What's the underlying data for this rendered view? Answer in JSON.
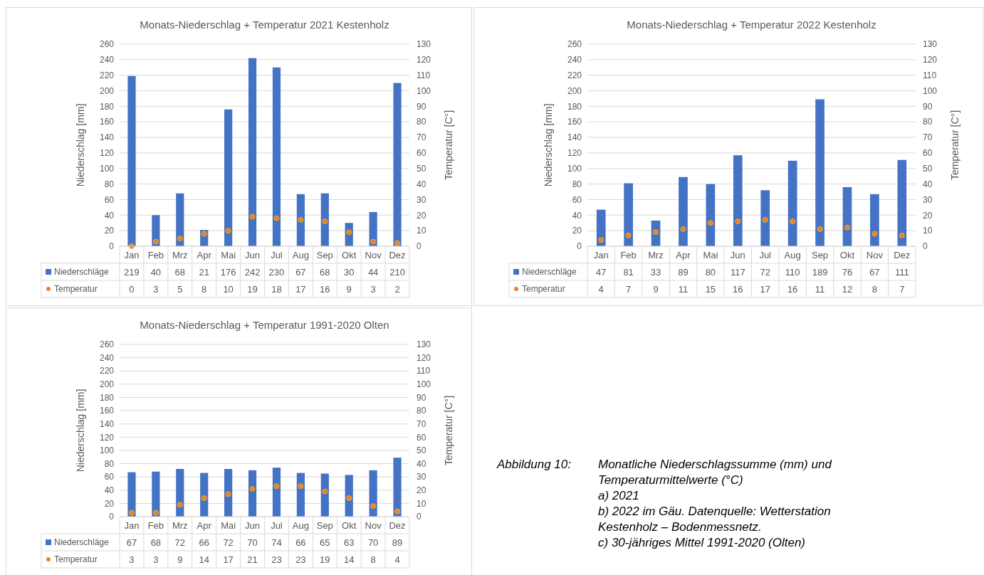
{
  "chart_data": [
    {
      "type": "bar",
      "title": "Monats-Niederschlag + Temperatur 2021 Kestenholz",
      "ylabel": "Niederschlag [mm]",
      "y2label": "Temperatur [C°]",
      "categories": [
        "Jan",
        "Feb",
        "Mrz",
        "Apr",
        "Mai",
        "Jun",
        "Jul",
        "Aug",
        "Sep",
        "Okt",
        "Nov",
        "Dez"
      ],
      "ylim": [
        0,
        260
      ],
      "yticks": [
        0,
        20,
        40,
        60,
        80,
        100,
        120,
        140,
        160,
        180,
        200,
        220,
        240,
        260
      ],
      "y2lim": [
        0,
        130
      ],
      "y2ticks": [
        0,
        10,
        20,
        30,
        40,
        50,
        60,
        70,
        80,
        90,
        100,
        110,
        120,
        130
      ],
      "grid": "y",
      "legend": "bottom",
      "data_labels": true,
      "series": [
        {
          "name": "Niederschläge",
          "type": "bar",
          "color": "#4472c4",
          "values": [
            219,
            40,
            68,
            21,
            176,
            242,
            230,
            67,
            68,
            30,
            44,
            210
          ]
        },
        {
          "name": "Temperatur",
          "type": "scatter",
          "axis": "y2",
          "marker": "circle",
          "color": "#ed7d31",
          "values": [
            0,
            3,
            5,
            8,
            10,
            19,
            18,
            17,
            16,
            9,
            3,
            2
          ]
        }
      ]
    },
    {
      "type": "bar",
      "title": "Monats-Niederschlag + Temperatur 2022 Kestenholz",
      "ylabel": "Niederschlag [mm]",
      "y2label": "Temperatur [C°]",
      "categories": [
        "Jan",
        "Feb",
        "Mrz",
        "Apr",
        "Mai",
        "Jun",
        "Jul",
        "Aug",
        "Sep",
        "Okt",
        "Nov",
        "Dez"
      ],
      "ylim": [
        0,
        260
      ],
      "yticks": [
        0,
        20,
        40,
        60,
        80,
        100,
        120,
        140,
        160,
        180,
        200,
        220,
        240,
        260
      ],
      "y2lim": [
        0,
        130
      ],
      "y2ticks": [
        0,
        10,
        20,
        30,
        40,
        50,
        60,
        70,
        80,
        90,
        100,
        110,
        120,
        130
      ],
      "grid": "y",
      "legend": "bottom",
      "data_labels": true,
      "series": [
        {
          "name": "Niederschläge",
          "type": "bar",
          "color": "#4472c4",
          "values": [
            47,
            81,
            33,
            89,
            80,
            117,
            72,
            110,
            189,
            76,
            67,
            111
          ]
        },
        {
          "name": "Temperatur",
          "type": "scatter",
          "axis": "y2",
          "marker": "circle",
          "color": "#ed7d31",
          "values": [
            4,
            7,
            9,
            11,
            15,
            16,
            17,
            16,
            11,
            12,
            8,
            7
          ]
        }
      ]
    },
    {
      "type": "bar",
      "title": "Monats-Niederschlag + Temperatur 1991-2020 Olten",
      "ylabel": "Niederschlag [mm]",
      "y2label": "Temperatur [C°]",
      "categories": [
        "Jan",
        "Feb",
        "Mrz",
        "Apr",
        "Mai",
        "Jun",
        "Jul",
        "Aug",
        "Sep",
        "Okt",
        "Nov",
        "Dez"
      ],
      "ylim": [
        0,
        260
      ],
      "yticks": [
        0,
        20,
        40,
        60,
        80,
        100,
        120,
        140,
        160,
        180,
        200,
        220,
        240,
        260
      ],
      "y2lim": [
        0,
        130
      ],
      "y2ticks": [
        0,
        10,
        20,
        30,
        40,
        50,
        60,
        70,
        80,
        90,
        100,
        110,
        120,
        130
      ],
      "grid": "y",
      "legend": "bottom",
      "data_labels": true,
      "series": [
        {
          "name": "Niederschläge",
          "type": "bar",
          "color": "#4472c4",
          "values": [
            67,
            68,
            72,
            66,
            72,
            70,
            74,
            66,
            65,
            63,
            70,
            89
          ]
        },
        {
          "name": "Temperatur",
          "type": "scatter",
          "axis": "y2",
          "marker": "circle",
          "color": "#ed7d31",
          "values": [
            3,
            3,
            9,
            14,
            17,
            21,
            23,
            23,
            19,
            14,
            8,
            4
          ]
        }
      ]
    },
    {
      "type": "other",
      "annotations": [
        "Abbildung 10:",
        "Monatliche Niederschlagssumme (mm) und Temperaturmittelwerte (°C)",
        "a) 2021",
        "b) 2022 im Gäu. Datenquelle: Wetterstation Kestenholz – Bodenmessnetz.",
        "c) 30-jähriges Mittel 1991-2020 (Olten)"
      ]
    }
  ]
}
